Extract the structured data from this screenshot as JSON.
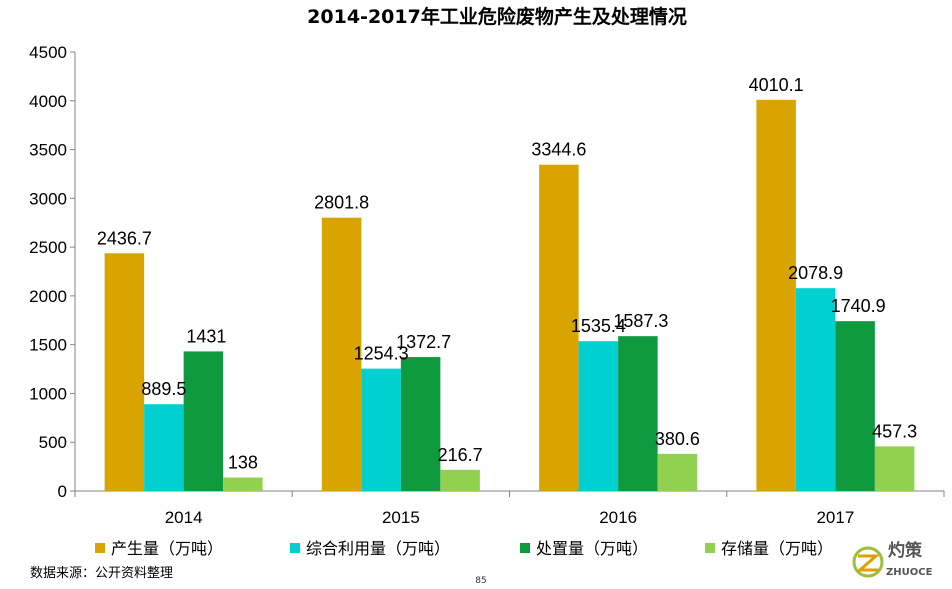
{
  "chart_data": {
    "type": "bar",
    "title": "2014-2017年工业危险废物产生及处理情况",
    "categories": [
      "2014",
      "2015",
      "2016",
      "2017"
    ],
    "series": [
      {
        "name": "产生量（万吨）",
        "color": "#DAA400",
        "values": [
          2436.7,
          2801.8,
          3344.6,
          4010.1
        ]
      },
      {
        "name": "综合利用量（万吨）",
        "color": "#00D0D0",
        "values": [
          889.5,
          1254.3,
          1535.4,
          2078.9
        ]
      },
      {
        "name": "处置量（万吨）",
        "color": "#109A40",
        "values": [
          1431,
          1372.7,
          1587.3,
          1740.9
        ]
      },
      {
        "name": "存储量（万吨）",
        "color": "#92D050",
        "values": [
          138,
          216.7,
          380.6,
          457.3
        ]
      }
    ],
    "data_labels": [
      [
        "2436.7",
        "889.5",
        "1431",
        "138"
      ],
      [
        "2801.8",
        "1254.3",
        "1372.7",
        "216.7"
      ],
      [
        "3344.6",
        "1535.4",
        "1587.3",
        "380.6"
      ],
      [
        "4010.1",
        "2078.9",
        "1740.9",
        "457.3"
      ]
    ],
    "ylim": [
      0,
      4500
    ],
    "yticks": [
      0,
      500,
      1000,
      1500,
      2000,
      2500,
      3000,
      3500,
      4000,
      4500
    ],
    "grid": false,
    "legend_position": "bottom"
  },
  "source_note": "数据来源：公开资料整理",
  "page_number": "85",
  "watermark": {
    "text_cn": "灼策",
    "text_en": "ZHUOCE"
  }
}
